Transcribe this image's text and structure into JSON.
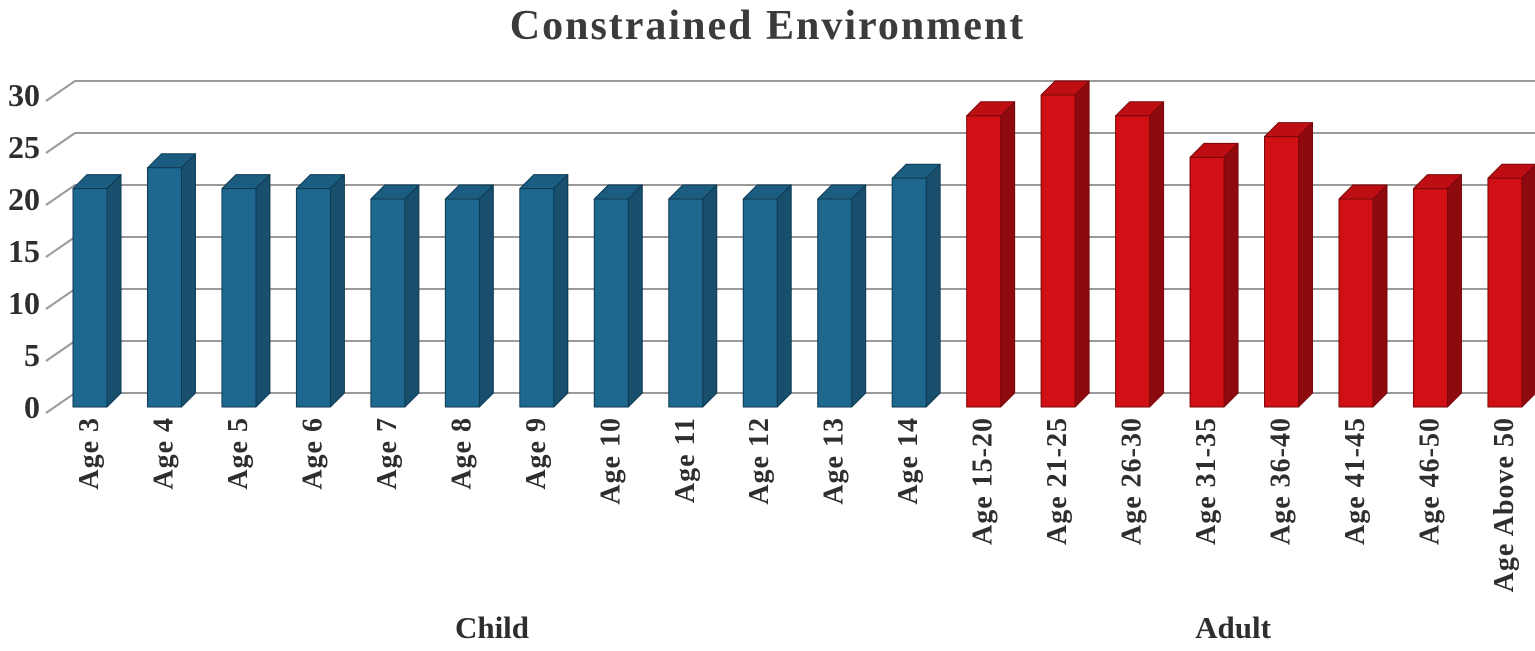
{
  "chart_data": {
    "type": "bar",
    "style": "3d-column",
    "title": "Constrained Environment",
    "xlabel": "",
    "ylabel": "",
    "ylim": [
      0,
      30
    ],
    "y_ticks": [
      0,
      5,
      10,
      15,
      20,
      25,
      30
    ],
    "grid": true,
    "legend_position": "none",
    "groups": [
      {
        "name": "Child",
        "bar_color": "#1E688F",
        "bar_top_color": "#1A5D81",
        "bar_side_color": "#174F6D",
        "edge_color": "#0F3A54",
        "categories": [
          "Age 3",
          "Age 4",
          "Age 5",
          "Age 6",
          "Age 7",
          "Age 8",
          "Age 9",
          "Age 10",
          "Age 11",
          "Age 12",
          "Age 13",
          "Age 14"
        ],
        "values": [
          21,
          23,
          21,
          21,
          20,
          20,
          21,
          20,
          20,
          20,
          20,
          22
        ]
      },
      {
        "name": "Adult",
        "bar_color": "#D01015",
        "bar_top_color": "#BD0E13",
        "bar_side_color": "#8E0A0F",
        "edge_color": "#7A0709",
        "categories": [
          "Age 15-20",
          "Age 21-25",
          "Age 26-30",
          "Age 31-35",
          "Age 36-40",
          "Age 41-45",
          "Age 46-50",
          "Age Above 50"
        ],
        "values": [
          28,
          30,
          28,
          24,
          26,
          20,
          21,
          22
        ]
      }
    ],
    "colors": {
      "grid": "#9A9A9A",
      "text": "#2E2E2E",
      "title": "#3B3B3B"
    }
  }
}
